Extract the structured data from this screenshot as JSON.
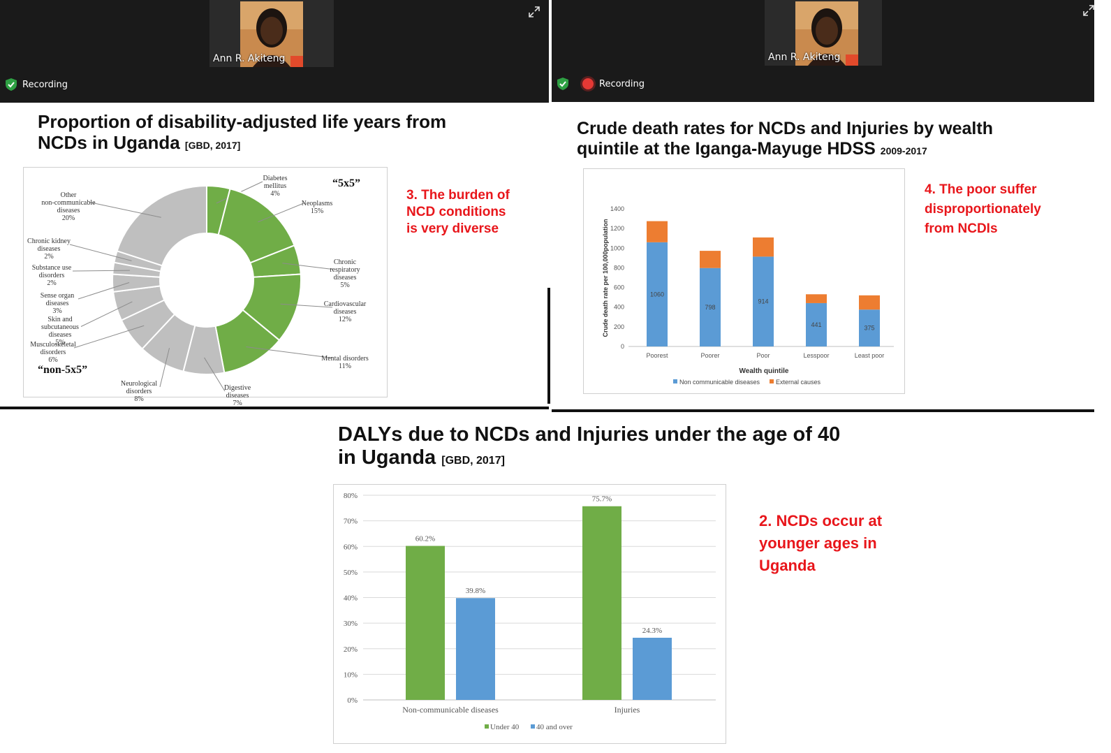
{
  "meeting": {
    "participant_name": "Ann R. Akiteng",
    "recording_label": "Recording"
  },
  "colors": {
    "ncd_green": "#70ad47",
    "grey": "#bfbfbf",
    "blue": "#5b9bd5",
    "orange": "#ed7d31",
    "red_note": "#e8161b"
  },
  "slide_tl": {
    "title_main": "Proportion of disability-adjusted life years from",
    "title_line2": "NCDs in Uganda",
    "title_ref": "[GBD, 2017]",
    "tag_5x5": "“5x5”",
    "tag_non5x5": "“non-5x5”",
    "note": [
      "3. The burden of",
      "NCD conditions",
      "is very diverse"
    ]
  },
  "slide_tr": {
    "title_main": "Crude death rates for NCDs and Injuries by wealth",
    "title_line2": "quintile at the Iganga-Mayuge HDSS",
    "title_ref": "2009-2017",
    "note": [
      "4. The poor suffer",
      "disproportionately",
      "from NCDIs"
    ]
  },
  "slide_bottom": {
    "title_main": "DALYs due to NCDs and Injuries under the age of 40",
    "title_line2": "in Uganda",
    "title_ref": "[GBD, 2017]",
    "note": [
      "2. NCDs occur at",
      "younger ages in",
      "Uganda"
    ]
  },
  "chart_data": [
    {
      "type": "pie",
      "variant": "donut",
      "slices": [
        {
          "label": "Diabetes mellitus",
          "value": 4,
          "label_value": "4%",
          "group": "5x5"
        },
        {
          "label": "Neoplasms",
          "value": 15,
          "label_value": "15%",
          "group": "5x5"
        },
        {
          "label": "Chronic respiratory diseases",
          "value": 5,
          "label_value": "5%",
          "group": "5x5"
        },
        {
          "label": "Cardiovascular diseases",
          "value": 12,
          "label_value": "12%",
          "group": "5x5"
        },
        {
          "label": "Mental disorders",
          "value": 11,
          "label_value": "11%",
          "group": "5x5"
        },
        {
          "label": "Digestive diseases",
          "value": 7,
          "label_value": "7%",
          "group": "non-5x5"
        },
        {
          "label": "Neurological disorders",
          "value": 8,
          "label_value": "8%",
          "group": "non-5x5"
        },
        {
          "label": "Musculoskeletal disorders",
          "value": 6,
          "label_value": "6%",
          "group": "non-5x5"
        },
        {
          "label": "Skin and subcutaneous diseases",
          "value": 5,
          "label_value": "5%",
          "group": "non-5x5"
        },
        {
          "label": "Sense organ diseases",
          "value": 3,
          "label_value": "3%",
          "group": "non-5x5"
        },
        {
          "label": "Substance use disorders",
          "value": 2,
          "label_value": "2%",
          "group": "non-5x5"
        },
        {
          "label": "Chronic kidney diseases",
          "value": 2,
          "label_value": "2%",
          "group": "non-5x5"
        },
        {
          "label": "Other non-communicable diseases",
          "value": 20,
          "label_value": "20%",
          "group": "non-5x5"
        }
      ]
    },
    {
      "type": "bar",
      "stacked": true,
      "categories": [
        "Poorest",
        "Poorer",
        "Poor",
        "Lesspoor",
        "Least poor"
      ],
      "series": [
        {
          "name": "Non communicable diseases",
          "values": [
            1060,
            798,
            914,
            441,
            375
          ],
          "labels": [
            "1060",
            "798",
            "914",
            "441",
            "375"
          ]
        },
        {
          "name": "External causes",
          "values": [
            215,
            175,
            195,
            90,
            145
          ]
        }
      ],
      "xlabel": "Wealth quintile",
      "ylabel": "Crude death rate per 100,000population",
      "ylim": [
        0,
        1400
      ],
      "yticks": [
        "0",
        "200",
        "400",
        "600",
        "800",
        "1000",
        "1200",
        "1400"
      ],
      "legend": "bottom"
    },
    {
      "type": "bar",
      "categories": [
        "Non-communicable diseases",
        "Injuries"
      ],
      "series": [
        {
          "name": "Under 40",
          "values": [
            60.2,
            75.7
          ],
          "labels": [
            "60.2%",
            "75.7%"
          ]
        },
        {
          "name": "40 and over",
          "values": [
            39.8,
            24.3
          ],
          "labels": [
            "39.8%",
            "24.3%"
          ]
        }
      ],
      "ylim": [
        0,
        80
      ],
      "yticks": [
        "0%",
        "10%",
        "20%",
        "30%",
        "40%",
        "50%",
        "60%",
        "70%",
        "80%"
      ],
      "grid": true,
      "legend": "bottom"
    }
  ]
}
